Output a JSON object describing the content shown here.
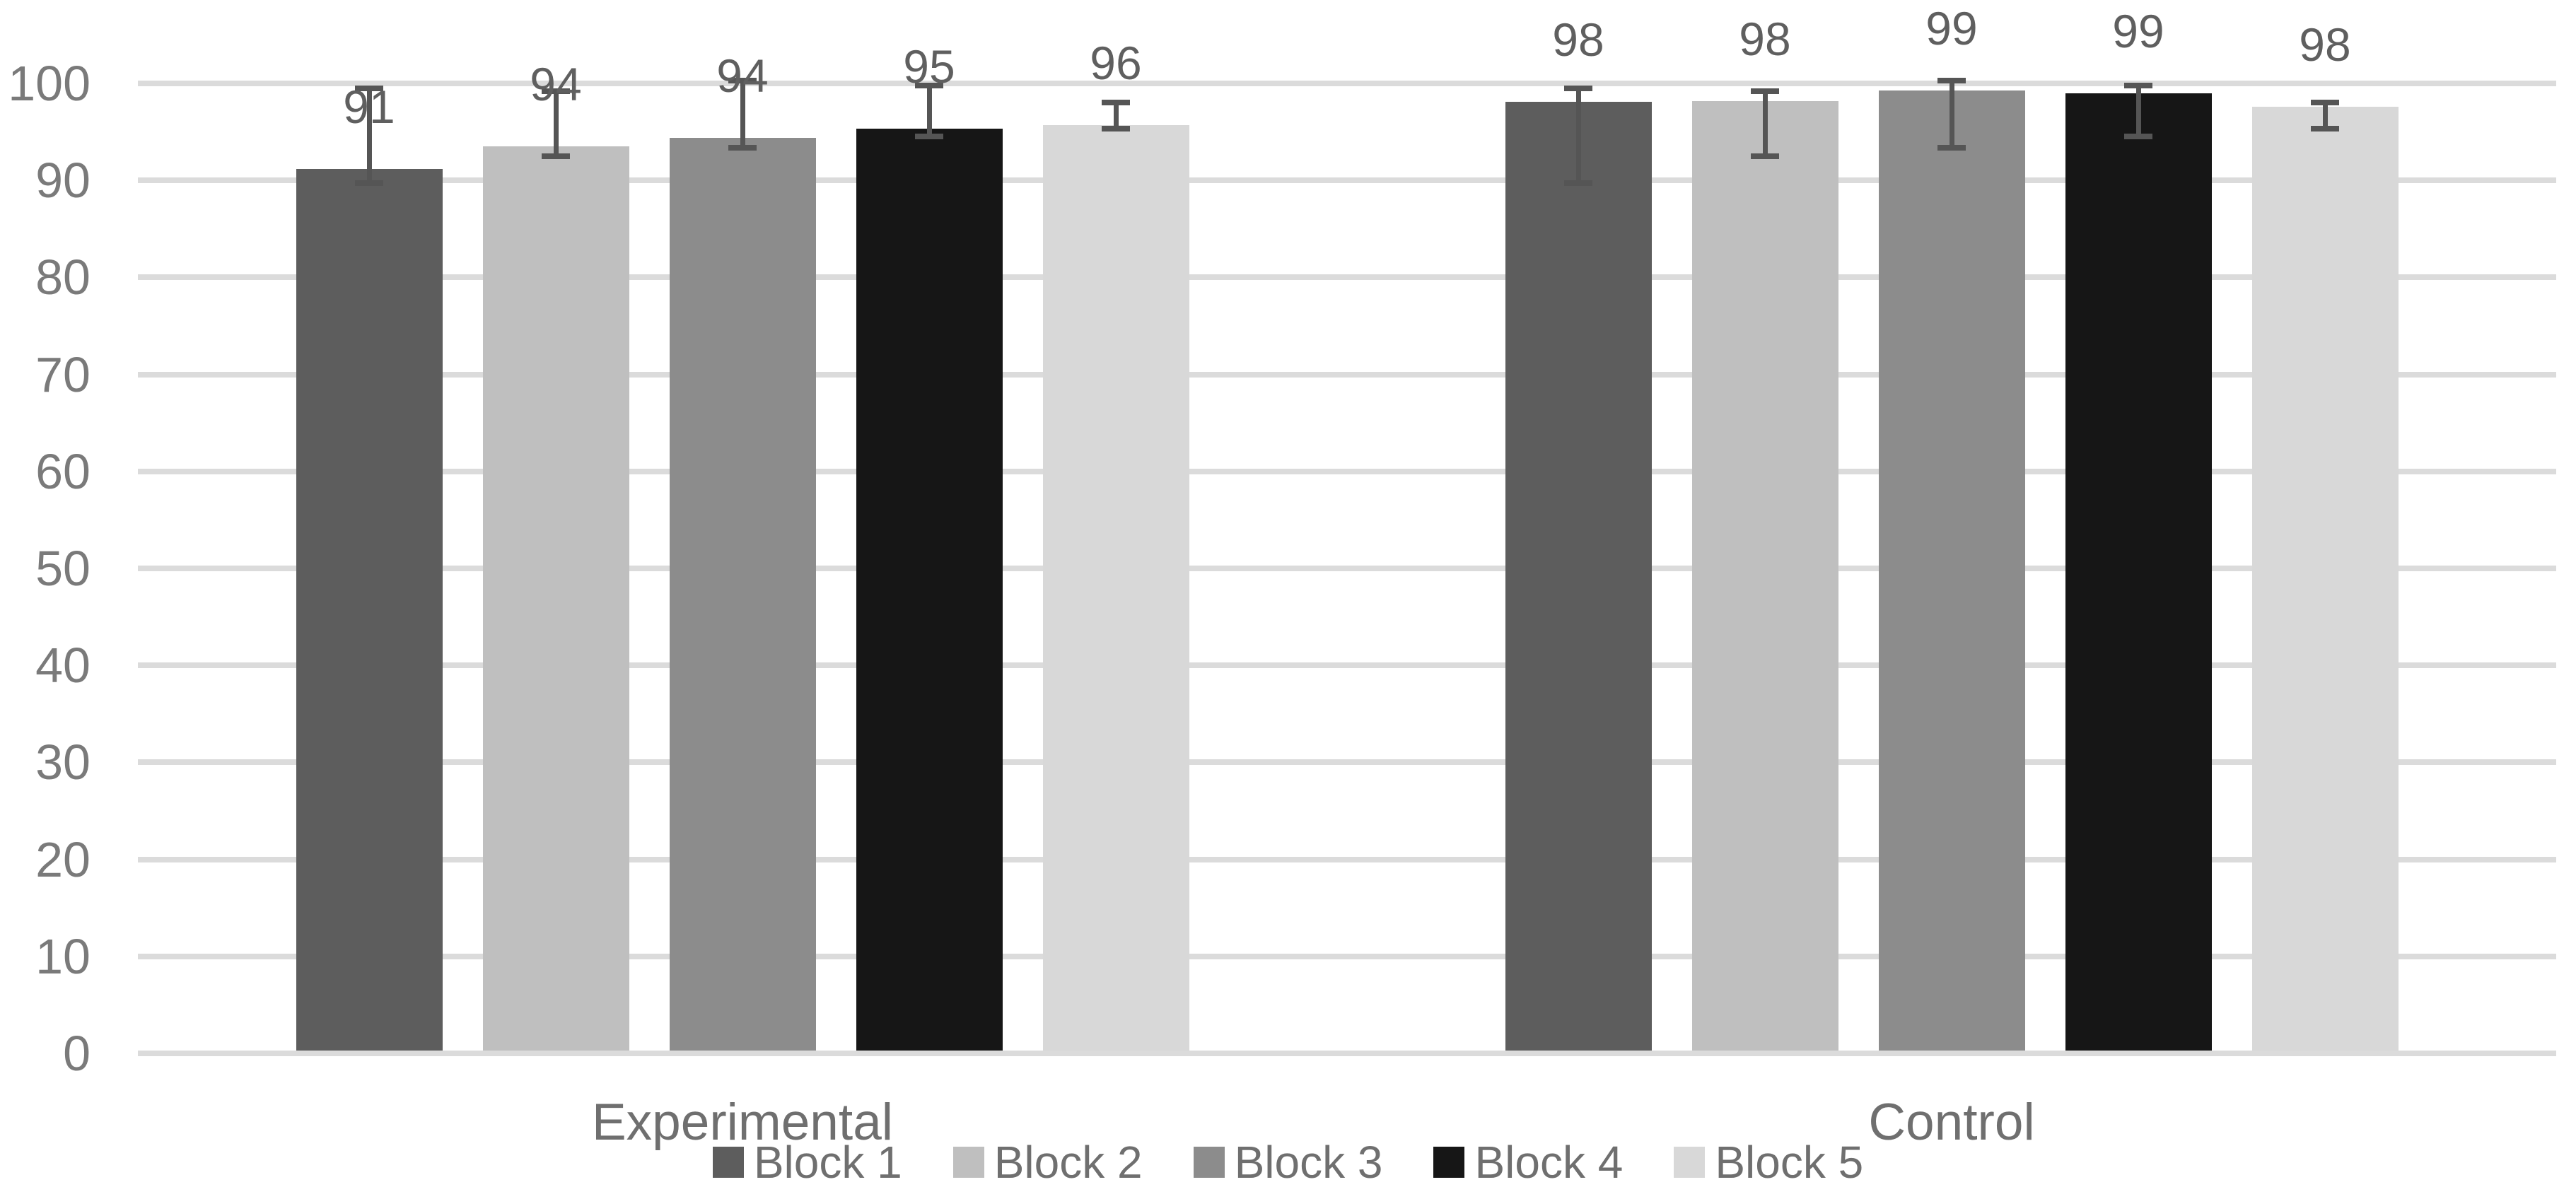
{
  "chart_data": {
    "type": "bar",
    "title": "",
    "categories": [
      "Experimental",
      "Control"
    ],
    "series": [
      {
        "name": "Block 1",
        "color": "#5d5d5d",
        "values": [
          91.2,
          98.1
        ],
        "labels": [
          "91",
          "98"
        ],
        "error_low": 89.7,
        "error_high": 99.5
      },
      {
        "name": "Block 2",
        "color": "#bfbfbf",
        "values": [
          93.5,
          98.2
        ],
        "labels": [
          "94",
          "98"
        ],
        "error_low": 92.5,
        "error_high": 99.2
      },
      {
        "name": "Block 3",
        "color": "#8c8c8c",
        "values": [
          94.4,
          99.3
        ],
        "labels": [
          "94",
          "99"
        ],
        "error_low": 93.4,
        "error_high": 100.3
      },
      {
        "name": "Block 4",
        "color": "#161616",
        "values": [
          95.3,
          99.0
        ],
        "labels": [
          "95",
          "99"
        ],
        "error_low": 94.5,
        "error_high": 99.8
      },
      {
        "name": "Block 5",
        "color": "#d8d8d8",
        "values": [
          95.7,
          97.6
        ],
        "labels": [
          "96",
          "98"
        ],
        "error_low": 95.3,
        "error_high": 98.0
      }
    ],
    "y_axis": {
      "min": 0,
      "max": 100,
      "ticks": [
        0,
        10,
        20,
        30,
        40,
        50,
        60,
        70,
        80,
        90,
        100
      ]
    },
    "xlabel": "",
    "ylabel": "",
    "grid": true,
    "legend": {
      "position": "bottom",
      "entries": [
        "Block 1",
        "Block 2",
        "Block 3",
        "Block 4",
        "Block 5"
      ]
    }
  },
  "colors": {
    "background": "#ffffff",
    "gridline": "#dbdbdb",
    "axis_text": "#7a7a7a",
    "category_text": "#6f6f6f",
    "legend_text": "#6f6f6f",
    "data_label_text": "#5f5f5f",
    "error_bar": "#555555"
  }
}
